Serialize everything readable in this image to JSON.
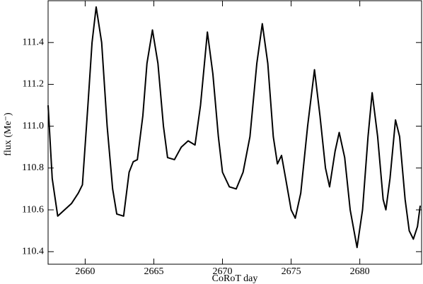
{
  "chart_data": {
    "type": "line",
    "xlabel": "CoRoT day",
    "ylabel": "flux (Me⁻)",
    "x": [
      2657.3,
      2657.6,
      2658.0,
      2658.5,
      2659.0,
      2659.5,
      2659.8,
      2660.2,
      2660.5,
      2660.8,
      2661.2,
      2661.6,
      2662.0,
      2662.3,
      2662.8,
      2663.2,
      2663.5,
      2663.8,
      2664.2,
      2664.5,
      2664.9,
      2665.3,
      2665.7,
      2666.0,
      2666.5,
      2667.0,
      2667.5,
      2668.0,
      2668.4,
      2668.9,
      2669.3,
      2669.7,
      2670.0,
      2670.5,
      2671.0,
      2671.5,
      2672.0,
      2672.5,
      2672.9,
      2673.3,
      2673.7,
      2674.0,
      2674.3,
      2674.6,
      2675.0,
      2675.3,
      2675.7,
      2676.2,
      2676.7,
      2677.1,
      2677.5,
      2677.8,
      2678.2,
      2678.5,
      2678.9,
      2679.3,
      2679.8,
      2680.2,
      2680.6,
      2680.9,
      2681.3,
      2681.7,
      2681.9,
      2682.2,
      2682.6,
      2682.9,
      2683.3,
      2683.6,
      2683.9,
      2684.2,
      2684.4
    ],
    "values": [
      111.1,
      110.75,
      110.57,
      110.6,
      110.63,
      110.68,
      110.72,
      111.1,
      111.4,
      111.57,
      111.4,
      111.0,
      110.7,
      110.58,
      110.57,
      110.78,
      110.83,
      110.84,
      111.05,
      111.3,
      111.46,
      111.3,
      111.0,
      110.85,
      110.84,
      110.9,
      110.93,
      110.91,
      111.1,
      111.45,
      111.25,
      110.95,
      110.78,
      110.71,
      110.7,
      110.78,
      110.95,
      111.3,
      111.49,
      111.3,
      110.95,
      110.82,
      110.86,
      110.75,
      110.6,
      110.56,
      110.68,
      111.0,
      111.27,
      111.05,
      110.8,
      110.71,
      110.88,
      110.97,
      110.85,
      110.6,
      110.42,
      110.6,
      110.95,
      111.16,
      110.95,
      110.65,
      110.6,
      110.75,
      111.03,
      110.95,
      110.65,
      110.5,
      110.46,
      110.52,
      110.62
    ],
    "color": "#000000",
    "xlim": [
      2657.3,
      2684.5
    ],
    "ylim": [
      110.34,
      111.6
    ],
    "xticks": [
      2660,
      2665,
      2670,
      2675,
      2680
    ],
    "yticks": [
      110.4,
      110.6,
      110.8,
      {
        "value": 111.0,
        "label": "111.0"
      },
      111.2,
      111.4
    ]
  }
}
